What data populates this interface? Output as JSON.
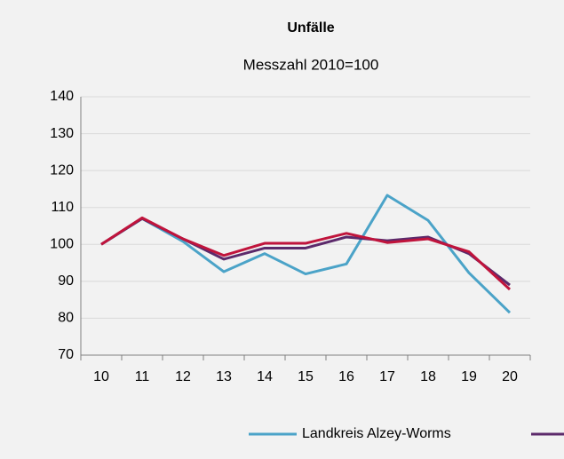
{
  "chart_data": {
    "type": "line",
    "title": "Unfälle",
    "subtitle": "Messzahl 2010=100",
    "categories": [
      "10",
      "11",
      "12",
      "13",
      "14",
      "15",
      "16",
      "17",
      "18",
      "19",
      "20"
    ],
    "series": [
      {
        "name": "Landkreis Alzey-Worms",
        "color": "#4ba3c8",
        "values": [
          100,
          107,
          100.8,
          92.6,
          97.5,
          92,
          94.7,
          113.3,
          106.5,
          92.3,
          81.5
        ]
      },
      {
        "color": "#5c2a6b",
        "values": [
          100,
          107,
          101.5,
          96,
          99,
          99,
          102,
          101,
          102,
          97.5,
          89
        ]
      },
      {
        "color": "#c0143c",
        "values": [
          100,
          107.2,
          101.5,
          97,
          100.3,
          100.3,
          103,
          100.5,
          101.5,
          98,
          87.8
        ]
      }
    ],
    "ylim": [
      70,
      140
    ],
    "yticks": [
      70,
      80,
      90,
      100,
      110,
      120,
      130,
      140
    ],
    "grid": true
  }
}
